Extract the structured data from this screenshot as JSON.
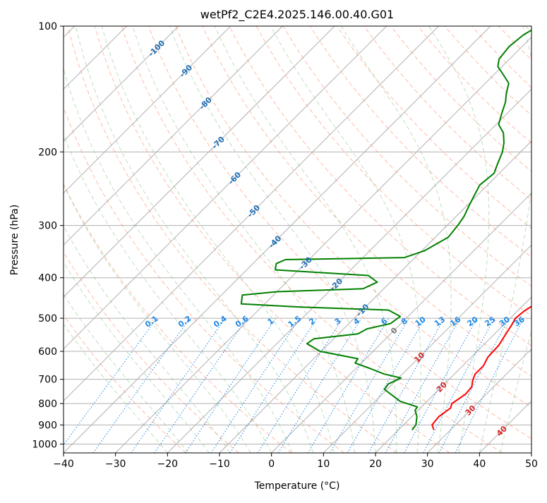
{
  "chart_data": {
    "type": "line",
    "title": "wetPf2_C2E4.2025.146.00.40.G01",
    "xlabel": "Temperature (°C)",
    "ylabel": "Pressure (hPa)",
    "xlim": [
      -40,
      50
    ],
    "ylim": [
      1050,
      100
    ],
    "y_scale": "log",
    "grid": true,
    "x_ticks": [
      "−40",
      "−30",
      "−20",
      "−10",
      "0",
      "10",
      "20",
      "30",
      "40",
      "50"
    ],
    "y_ticks": [
      "100",
      "200",
      "300",
      "400",
      "500",
      "600",
      "700",
      "800",
      "900",
      "1000"
    ],
    "colors": {
      "temperature": "#ff0000",
      "dewpoint": "#008000",
      "grid": "#b0b0b0",
      "dry_adiabat": "#ff8c69",
      "moist_adiabat": "#7fbf7f",
      "mixing_ratio": "#1e88e5",
      "frame": "#000000"
    },
    "series": [
      {
        "key": "temperature",
        "points": [
          [
            26.8,
            925
          ],
          [
            25.5,
            900
          ],
          [
            25.2,
            860
          ],
          [
            25.8,
            820
          ],
          [
            25.2,
            800
          ],
          [
            26.0,
            760
          ],
          [
            25.8,
            730
          ],
          [
            24.6,
            700
          ],
          [
            24.0,
            680
          ],
          [
            24.0,
            650
          ],
          [
            23.2,
            620
          ],
          [
            23.0,
            580
          ],
          [
            22.3,
            550
          ],
          [
            21.6,
            520
          ],
          [
            21.0,
            500
          ],
          [
            21.3,
            480
          ],
          [
            22.2,
            460
          ],
          [
            22.8,
            440
          ],
          [
            21.8,
            425
          ],
          [
            20.0,
            410
          ],
          [
            19.3,
            395
          ],
          [
            19.1,
            380
          ],
          [
            18.4,
            370
          ],
          [
            16.2,
            350
          ],
          [
            11.8,
            320
          ],
          [
            6.5,
            290
          ],
          [
            2.8,
            268
          ],
          [
            -0.3,
            240
          ],
          [
            -0.7,
            220
          ],
          [
            -2.3,
            200
          ],
          [
            -4.0,
            190
          ],
          [
            -6.0,
            172
          ],
          [
            -7.6,
            160
          ],
          [
            -9.0,
            148
          ],
          [
            -10.5,
            135
          ],
          [
            -12.5,
            120
          ],
          [
            -14.8,
            108
          ],
          [
            -16.2,
            100
          ]
        ]
      },
      {
        "key": "dewpoint",
        "points": [
          [
            22.6,
            925
          ],
          [
            22.4,
            900
          ],
          [
            21.0,
            860
          ],
          [
            19.4,
            830
          ],
          [
            19.2,
            815
          ],
          [
            14.8,
            790
          ],
          [
            9.5,
            740
          ],
          [
            9.2,
            718
          ],
          [
            10.5,
            695
          ],
          [
            6.5,
            680
          ],
          [
            2.8,
            660
          ],
          [
            -1.2,
            640
          ],
          [
            -1.5,
            625
          ],
          [
            -10.2,
            600
          ],
          [
            -14.2,
            575
          ],
          [
            -13.8,
            560
          ],
          [
            -6.3,
            545
          ],
          [
            -5.5,
            530
          ],
          [
            -2.0,
            515
          ],
          [
            -1.5,
            495
          ],
          [
            -5.0,
            478
          ],
          [
            -22.5,
            470
          ],
          [
            -34.5,
            462
          ],
          [
            -36.0,
            440
          ],
          [
            -30.0,
            432
          ],
          [
            -14.0,
            425
          ],
          [
            -12.5,
            410
          ],
          [
            -15.5,
            395
          ],
          [
            -34.5,
            383
          ],
          [
            -35.5,
            370
          ],
          [
            -34.5,
            362
          ],
          [
            -12.0,
            358
          ],
          [
            -9.5,
            345
          ],
          [
            -7.5,
            320
          ],
          [
            -8.0,
            298
          ],
          [
            -8.5,
            285
          ],
          [
            -9.5,
            270
          ],
          [
            -10.5,
            255
          ],
          [
            -11.5,
            240
          ],
          [
            -11.0,
            225
          ],
          [
            -12.0,
            215
          ],
          [
            -13.5,
            200
          ],
          [
            -15.0,
            190
          ],
          [
            -17.0,
            180
          ],
          [
            -19.5,
            172
          ],
          [
            -21.0,
            162
          ],
          [
            -22.5,
            152
          ],
          [
            -24.0,
            145
          ],
          [
            -25.5,
            137
          ],
          [
            -28.5,
            130
          ],
          [
            -30.8,
            125
          ],
          [
            -32.0,
            120
          ],
          [
            -32.5,
            112
          ],
          [
            -32.0,
            105
          ],
          [
            -30.8,
            100
          ]
        ]
      }
    ],
    "isotherm_labels": [
      {
        "text": "-100",
        "t": -100,
        "p": 113
      },
      {
        "text": "-90",
        "t": -90,
        "p": 128
      },
      {
        "text": "-80",
        "t": -80,
        "p": 153
      },
      {
        "text": "-70",
        "t": -70,
        "p": 190
      },
      {
        "text": "-60",
        "t": -60,
        "p": 231
      },
      {
        "text": "-50",
        "t": -50,
        "p": 277
      },
      {
        "text": "-40",
        "t": -40,
        "p": 328
      },
      {
        "text": "-30",
        "t": -30,
        "p": 369
      },
      {
        "text": "-20",
        "t": -20,
        "p": 415
      },
      {
        "text": "-10",
        "t": -10,
        "p": 478
      },
      {
        "text": "0",
        "t": 0,
        "p": 535
      },
      {
        "text": "10",
        "t": 10,
        "p": 620
      },
      {
        "text": "20",
        "t": 20,
        "p": 730
      },
      {
        "text": "30",
        "t": 30,
        "p": 830
      },
      {
        "text": "40",
        "t": 40,
        "p": 930
      }
    ],
    "mixing_ratio_labels": [
      "0.1",
      "0.2",
      "0.4",
      "0.6",
      "1",
      "1.5",
      "2",
      "3",
      "4",
      "6",
      "8",
      "10",
      "13",
      "16",
      "20",
      "25",
      "30",
      "36"
    ]
  }
}
